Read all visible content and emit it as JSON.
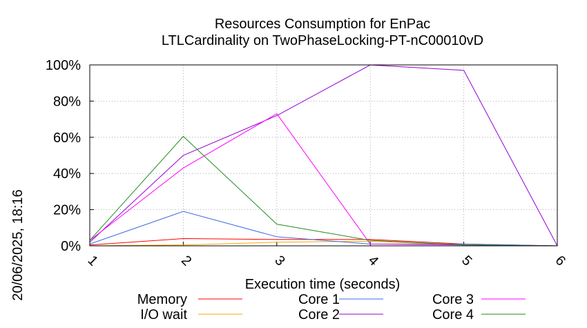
{
  "chart_data": {
    "type": "line",
    "title": "Resources Consumption for EnPac",
    "subtitle": "LTLCardinality on TwoPhaseLocking-PT-nC00010vD",
    "xlabel": "Execution time (seconds)",
    "ylabel": "",
    "side_label": "20/06/2025, 18:16",
    "x": [
      1,
      2,
      3,
      4,
      5,
      6
    ],
    "x_ticks": [
      "1",
      "2",
      "3",
      "4",
      "5",
      "6"
    ],
    "xlim": [
      1,
      6
    ],
    "ylim": [
      0,
      100
    ],
    "y_ticks": [
      "0%",
      "20%",
      "40%",
      "60%",
      "80%",
      "100%"
    ],
    "y_tick_values": [
      0,
      20,
      40,
      60,
      80,
      100
    ],
    "grid": true,
    "legend_placement": "bottom",
    "series": [
      {
        "name": "Memory",
        "color": "#ff0000",
        "values": [
          0.5,
          4,
          3.5,
          3.5,
          1,
          0
        ]
      },
      {
        "name": "I/O wait",
        "color": "#ffa500",
        "values": [
          0,
          0.5,
          2,
          2.5,
          0.5,
          0
        ]
      },
      {
        "name": "Core 1",
        "color": "#4169e1",
        "values": [
          1,
          19,
          5,
          1,
          1,
          0
        ]
      },
      {
        "name": "Core 2",
        "color": "#9400d3",
        "values": [
          2,
          50,
          72,
          100,
          97,
          0
        ]
      },
      {
        "name": "Core 3",
        "color": "#ff00ff",
        "values": [
          3,
          43,
          73,
          1,
          0.5,
          0
        ]
      },
      {
        "name": "Core 4",
        "color": "#228b22",
        "values": [
          3,
          60.5,
          12,
          3,
          0.5,
          0
        ]
      }
    ]
  }
}
